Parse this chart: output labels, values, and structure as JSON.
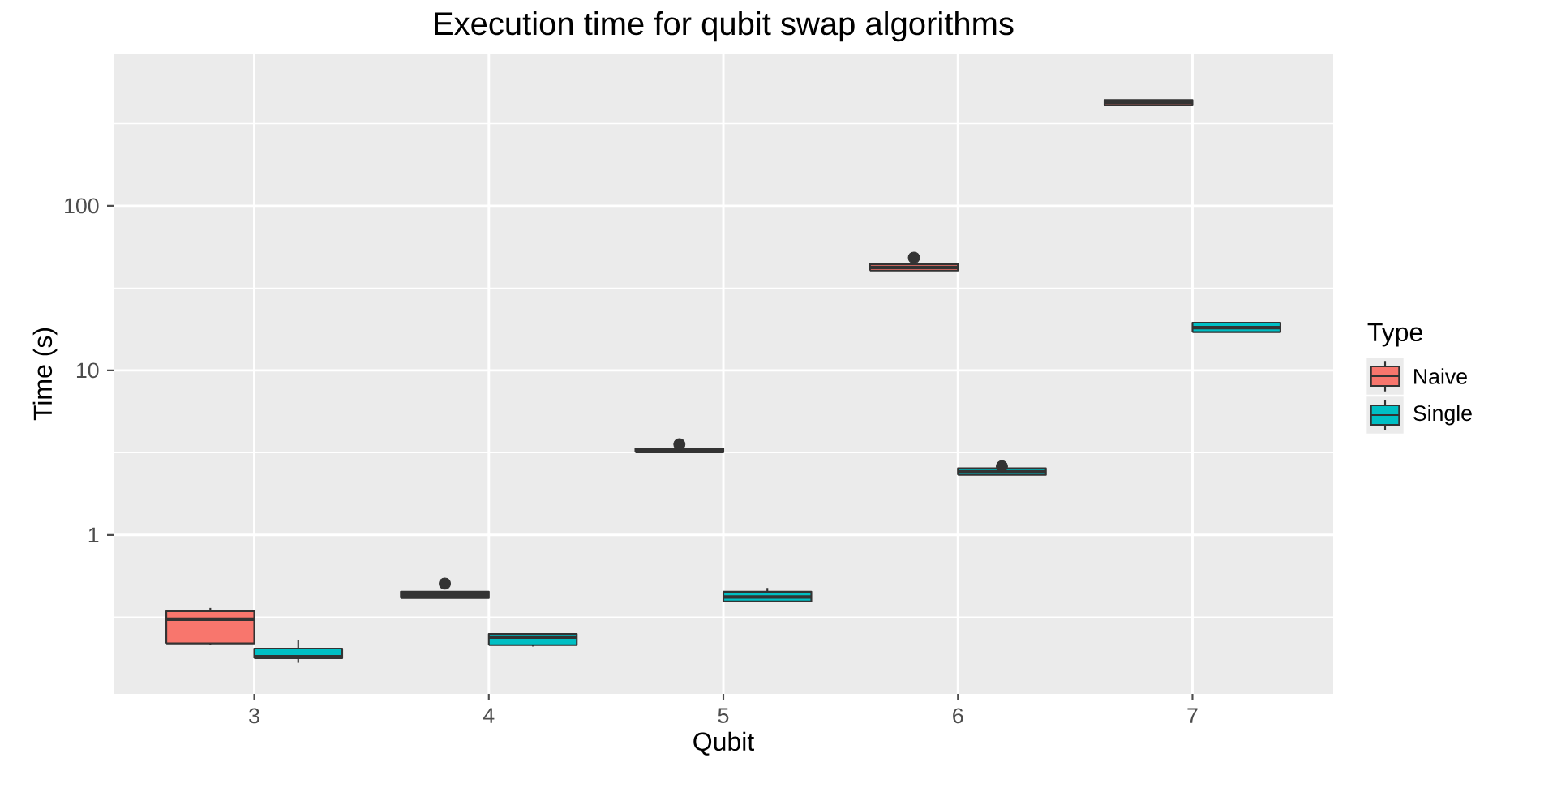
{
  "chart_data": {
    "type": "box",
    "title": "Execution time for qubit swap algorithms",
    "xlabel": "Qubit",
    "ylabel": "Time (s)",
    "legend_title": "Type",
    "categories": [
      "3",
      "4",
      "5",
      "6",
      "7"
    ],
    "series": [
      {
        "name": "Naive",
        "color": "#f8766d",
        "boxes": [
          {
            "low": 0.215,
            "q1": 0.219,
            "median": 0.307,
            "q3": 0.344,
            "high": 0.36
          },
          {
            "low": 0.413,
            "q1": 0.413,
            "median": 0.43,
            "q3": 0.452,
            "high": 0.452,
            "outliers": [
              0.506
            ]
          },
          {
            "low": 3.18,
            "q1": 3.18,
            "median": 3.28,
            "q3": 3.35,
            "high": 3.35,
            "outliers": [
              3.56
            ]
          },
          {
            "low": 40.4,
            "q1": 40.4,
            "median": 42.2,
            "q3": 44.2,
            "high": 44.2,
            "outliers": [
              48.4
            ]
          },
          {
            "low": 408,
            "q1": 408,
            "median": 424,
            "q3": 440,
            "high": 440
          }
        ]
      },
      {
        "name": "Single",
        "color": "#00bfc4",
        "boxes": [
          {
            "low": 0.167,
            "q1": 0.178,
            "median": 0.182,
            "q3": 0.204,
            "high": 0.229
          },
          {
            "low": 0.21,
            "q1": 0.214,
            "median": 0.239,
            "q3": 0.25,
            "high": 0.25
          },
          {
            "low": 0.394,
            "q1": 0.394,
            "median": 0.42,
            "q3": 0.452,
            "high": 0.476
          },
          {
            "low": 2.32,
            "q1": 2.32,
            "median": 2.42,
            "q3": 2.54,
            "high": 2.54,
            "outliers": [
              2.61
            ]
          },
          {
            "low": 17.1,
            "q1": 17.1,
            "median": 18.2,
            "q3": 19.5,
            "high": 19.5
          }
        ]
      }
    ],
    "log": "y",
    "ylim": [
      0.108,
      843
    ],
    "yticks": [
      1,
      10,
      100
    ],
    "grid": true,
    "legend": "right"
  }
}
